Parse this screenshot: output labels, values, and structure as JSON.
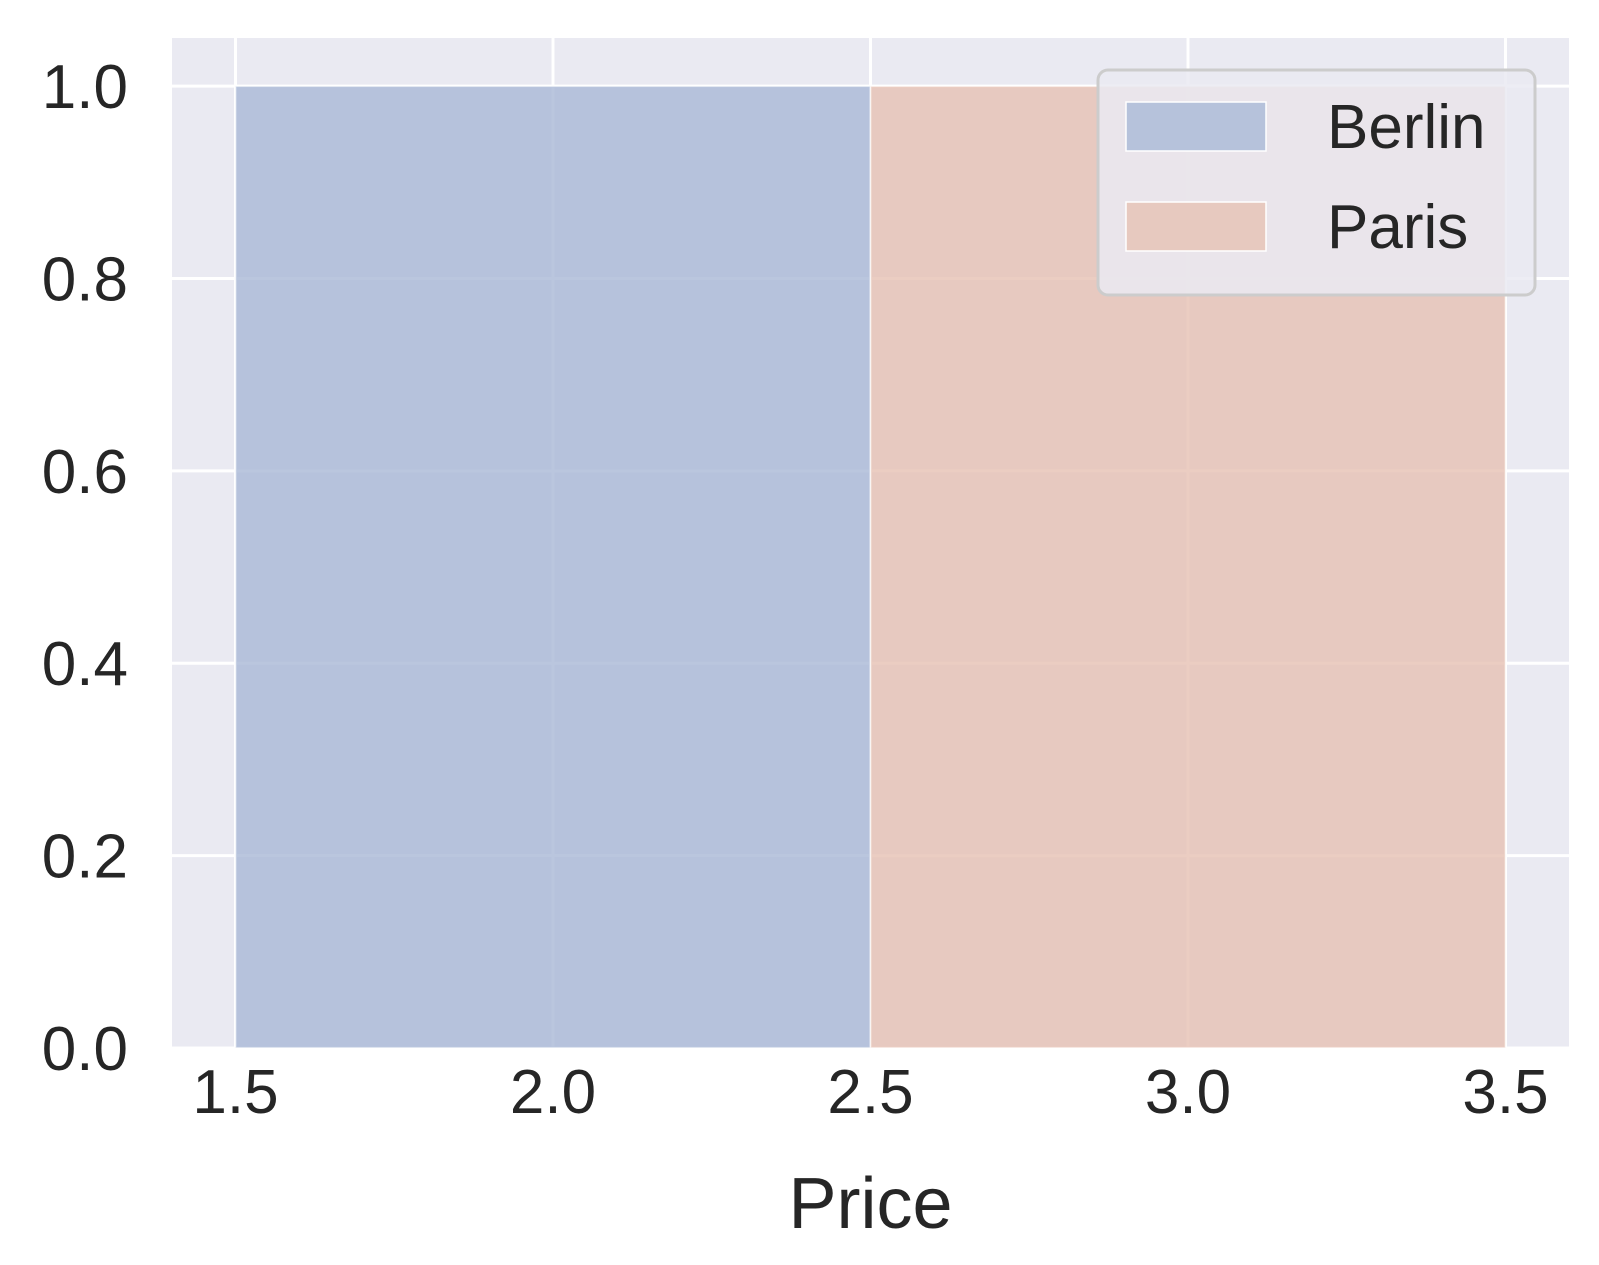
{
  "chart_data": {
    "type": "bar",
    "title": "",
    "xlabel": "Price",
    "ylabel": "",
    "xlim": [
      1.4,
      3.6
    ],
    "ylim": [
      0.0,
      1.05
    ],
    "x_ticks": [
      "1.5",
      "2.0",
      "2.5",
      "3.0",
      "3.5"
    ],
    "y_ticks": [
      "0.0",
      "0.2",
      "0.4",
      "0.6",
      "0.8",
      "1.0"
    ],
    "grid": true,
    "background": "#EAEAF2",
    "legend_position": "top-right",
    "series": [
      {
        "name": "Berlin",
        "color": "#ABBAD7",
        "bins": [
          {
            "x0": 1.5,
            "x1": 2.5,
            "value": 1.0
          }
        ]
      },
      {
        "name": "Paris",
        "color": "#E6C2B4",
        "bins": [
          {
            "x0": 2.5,
            "x1": 3.5,
            "value": 1.0
          }
        ]
      }
    ]
  }
}
